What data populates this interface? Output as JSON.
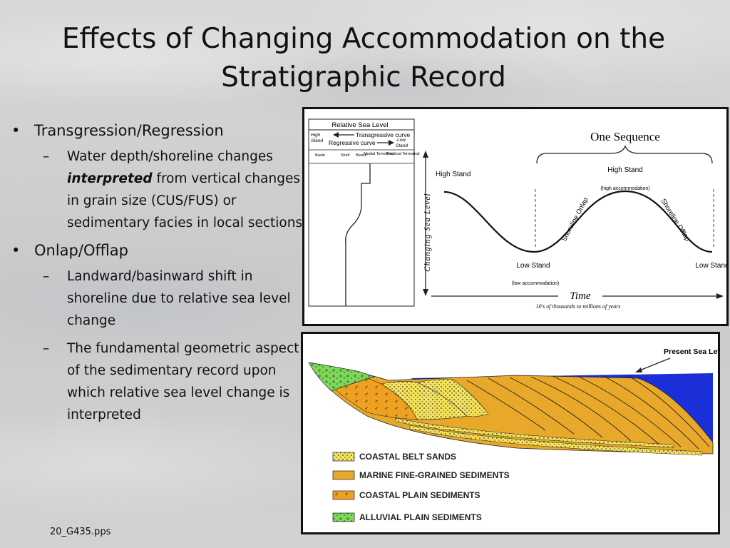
{
  "title": "Effects of Changing Accommodation on the Stratigraphic Record",
  "bullets": [
    {
      "text": "Transgression/Regression",
      "subs": [
        {
          "pre": "Water depth/shoreline changes ",
          "em": "interpreted",
          "post": " from vertical changes in grain size (CUS/FUS) or sedimentary facies in local sections"
        }
      ]
    },
    {
      "text": "Onlap/Offlap",
      "subs": [
        {
          "text": "Landward/basinward shift in shoreline due to relative sea level change"
        },
        {
          "text": "The fundamental geometric aspect of the sedimentary record upon which relative sea level change is interpreted"
        }
      ]
    }
  ],
  "footer": "20_G435.pps",
  "fig1": {
    "column_title": "Relative Sea Level",
    "high_stand_small": "High Stand",
    "low_stand_small": "Low Stand",
    "transgressive": "Transgressive curve",
    "regressive": "Regressive curve",
    "facies": [
      "Basin",
      "Shelf",
      "Beach",
      "Medial Terrestrial",
      "Proximal Terrestrial"
    ],
    "y_axis": "Changing Sea Level",
    "x_axis": "Time",
    "x_sub": "10's of thousands to millions of years",
    "sequence": "One Sequence",
    "high_stand": "High Stand",
    "high_stand_top": "High Stand",
    "high_accom": "(high accommodation)",
    "low_stand": "Low Stand",
    "low_stand_right": "Low Stand",
    "low_accom": "(low accommodation)",
    "onlap": "Shoreline Onlap",
    "offlap": "Shoreline Offlap"
  },
  "fig2": {
    "present_sea_level": "Present Sea Level",
    "legend": [
      {
        "label": "COASTAL BELT SANDS",
        "color": "#f4e35a"
      },
      {
        "label": "MARINE FINE-GRAINED SEDIMENTS",
        "color": "#e8a92a"
      },
      {
        "label": "COASTAL PLAIN SEDIMENTS",
        "color": "#f0a020"
      },
      {
        "label": "ALLUVIAL PLAIN SEDIMENTS",
        "color": "#7ed957"
      }
    ],
    "water_color": "#1a2fd8"
  }
}
